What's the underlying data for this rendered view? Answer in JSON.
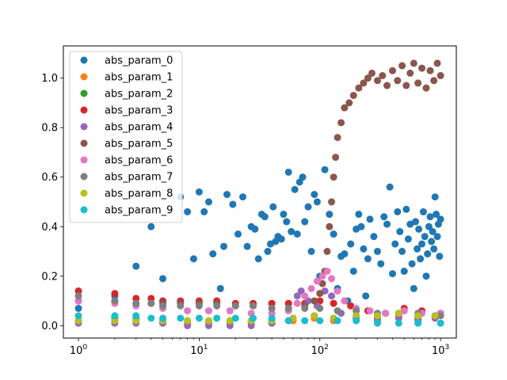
{
  "chart_data": {
    "type": "scatter",
    "title": "",
    "xlabel": "",
    "ylabel": "",
    "xscale": "log",
    "xlim": [
      0.75,
      1350
    ],
    "ylim": [
      -0.05,
      1.13
    ],
    "x_ticks": [
      {
        "value": 1,
        "base": "10",
        "exp": "0"
      },
      {
        "value": 10,
        "base": "10",
        "exp": "1"
      },
      {
        "value": 100,
        "base": "10",
        "exp": "2"
      },
      {
        "value": 1000,
        "base": "10",
        "exp": "3"
      }
    ],
    "y_ticks": [
      "0.0",
      "0.2",
      "0.4",
      "0.6",
      "0.8",
      "1.0"
    ],
    "grid": false,
    "legend_position": "top-left",
    "series": [
      {
        "name": "abs_param_0",
        "color": "#1f77b4",
        "points": [
          [
            1,
            0.07
          ],
          [
            2,
            0.12
          ],
          [
            3,
            0.24
          ],
          [
            4,
            0.4
          ],
          [
            5,
            0.19
          ],
          [
            7,
            0.52
          ],
          [
            8,
            0.46
          ],
          [
            9,
            0.27
          ],
          [
            10,
            0.54
          ],
          [
            11,
            0.46
          ],
          [
            12,
            0.5
          ],
          [
            13,
            0.29
          ],
          [
            15,
            0.15
          ],
          [
            16,
            0.32
          ],
          [
            17,
            0.53
          ],
          [
            19,
            0.49
          ],
          [
            21,
            0.37
          ],
          [
            23,
            0.52
          ],
          [
            25,
            0.32
          ],
          [
            27,
            0.4
          ],
          [
            29,
            0.39
          ],
          [
            31,
            0.27
          ],
          [
            33,
            0.45
          ],
          [
            35,
            0.44
          ],
          [
            37,
            0.3
          ],
          [
            39,
            0.33
          ],
          [
            41,
            0.48
          ],
          [
            43,
            0.34
          ],
          [
            45,
            0.36
          ],
          [
            48,
            0.35
          ],
          [
            50,
            0.45
          ],
          [
            53,
            0.42
          ],
          [
            55,
            0.62
          ],
          [
            58,
            0.38
          ],
          [
            62,
            0.55
          ],
          [
            65,
            0.37
          ],
          [
            68,
            0.58
          ],
          [
            72,
            0.6
          ],
          [
            75,
            0.42
          ],
          [
            80,
            0.48
          ],
          [
            85,
            0.3
          ],
          [
            90,
            0.53
          ],
          [
            95,
            0.5
          ],
          [
            100,
            0.2
          ],
          [
            110,
            0.63
          ],
          [
            120,
            0.45
          ],
          [
            130,
            0.37
          ],
          [
            140,
            0.15
          ],
          [
            150,
            0.28
          ],
          [
            160,
            0.29
          ],
          [
            170,
            0.1
          ],
          [
            180,
            0.33
          ],
          [
            190,
            0.22
          ],
          [
            200,
            0.39
          ],
          [
            210,
            0.45
          ],
          [
            220,
            0.4
          ],
          [
            230,
            0.31
          ],
          [
            240,
            0.12
          ],
          [
            250,
            0.27
          ],
          [
            260,
            0.43
          ],
          [
            280,
            0.36
          ],
          [
            300,
            0.3
          ],
          [
            320,
            0.25
          ],
          [
            340,
            0.44
          ],
          [
            360,
            0.41
          ],
          [
            380,
            0.56
          ],
          [
            400,
            0.21
          ],
          [
            420,
            0.33
          ],
          [
            440,
            0.46
          ],
          [
            460,
            0.38
          ],
          [
            480,
            0.3
          ],
          [
            500,
            0.22
          ],
          [
            520,
            0.47
          ],
          [
            540,
            0.35
          ],
          [
            560,
            0.41
          ],
          [
            580,
            0.25
          ],
          [
            600,
            0.15
          ],
          [
            620,
            0.42
          ],
          [
            640,
            0.31
          ],
          [
            660,
            0.39
          ],
          [
            680,
            0.27
          ],
          [
            700,
            0.33
          ],
          [
            720,
            0.46
          ],
          [
            740,
            0.36
          ],
          [
            760,
            0.2
          ],
          [
            780,
            0.29
          ],
          [
            800,
            0.4
          ],
          [
            820,
            0.44
          ],
          [
            840,
            0.34
          ],
          [
            860,
            0.38
          ],
          [
            880,
            0.31
          ],
          [
            900,
            0.52
          ],
          [
            920,
            0.45
          ],
          [
            940,
            0.36
          ],
          [
            960,
            0.41
          ],
          [
            980,
            0.28
          ],
          [
            1000,
            0.43
          ]
        ]
      },
      {
        "name": "abs_param_1",
        "color": "#ff7f0e",
        "points": [
          [
            1,
            0.02
          ],
          [
            2,
            0.02
          ],
          [
            3,
            0.02
          ],
          [
            5,
            0.01
          ],
          [
            8,
            0.01
          ],
          [
            12,
            0.01
          ],
          [
            18,
            0.01
          ],
          [
            27,
            0.01
          ],
          [
            40,
            0.01
          ],
          [
            60,
            0.02
          ],
          [
            90,
            0.03
          ],
          [
            130,
            0.02
          ],
          [
            200,
            0.03
          ],
          [
            300,
            0.03
          ],
          [
            450,
            0.04
          ],
          [
            650,
            0.03
          ],
          [
            900,
            0.04
          ]
        ]
      },
      {
        "name": "abs_param_2",
        "color": "#2ca02c",
        "points": [
          [
            1,
            0.02
          ],
          [
            2,
            0.03
          ],
          [
            3,
            0.03
          ],
          [
            5,
            0.02
          ],
          [
            8,
            0.02
          ],
          [
            12,
            0.02
          ],
          [
            18,
            0.02
          ],
          [
            27,
            0.02
          ],
          [
            40,
            0.02
          ],
          [
            60,
            0.03
          ],
          [
            90,
            0.04
          ],
          [
            130,
            0.03
          ],
          [
            200,
            0.04
          ],
          [
            300,
            0.03
          ],
          [
            450,
            0.05
          ],
          [
            650,
            0.03
          ],
          [
            900,
            0.04
          ]
        ]
      },
      {
        "name": "abs_param_3",
        "color": "#d62728",
        "points": [
          [
            1,
            0.14
          ],
          [
            2,
            0.13
          ],
          [
            3,
            0.11
          ],
          [
            4,
            0.11
          ],
          [
            5,
            0.1
          ],
          [
            7,
            0.1
          ],
          [
            10,
            0.1
          ],
          [
            14,
            0.1
          ],
          [
            20,
            0.09
          ],
          [
            28,
            0.09
          ],
          [
            40,
            0.09
          ],
          [
            55,
            0.09
          ],
          [
            75,
            0.09
          ],
          [
            100,
            0.1
          ],
          [
            130,
            0.09
          ],
          [
            180,
            0.08
          ],
          [
            250,
            0.06
          ],
          [
            350,
            0.05
          ],
          [
            500,
            0.07
          ],
          [
            700,
            0.06
          ],
          [
            1000,
            0.05
          ]
        ]
      },
      {
        "name": "abs_param_4",
        "color": "#9467bd",
        "points": [
          [
            1,
            0.01
          ],
          [
            2,
            0.01
          ],
          [
            3,
            0.01
          ],
          [
            5,
            0.01
          ],
          [
            8,
            0.0
          ],
          [
            12,
            0.0
          ],
          [
            18,
            0.0
          ],
          [
            27,
            0.0
          ],
          [
            40,
            0.01
          ],
          [
            55,
            0.02
          ],
          [
            65,
            0.12
          ],
          [
            70,
            0.14
          ],
          [
            80,
            0.1
          ],
          [
            95,
            0.08
          ],
          [
            110,
            0.14
          ],
          [
            125,
            0.12
          ],
          [
            150,
            0.05
          ],
          [
            200,
            0.03
          ],
          [
            300,
            0.02
          ],
          [
            450,
            0.03
          ],
          [
            650,
            0.02
          ],
          [
            900,
            0.03
          ]
        ]
      },
      {
        "name": "abs_param_5",
        "color": "#8c564b",
        "points": [
          [
            1,
            0.1
          ],
          [
            2,
            0.1
          ],
          [
            3,
            0.09
          ],
          [
            4,
            0.09
          ],
          [
            5,
            0.09
          ],
          [
            7,
            0.09
          ],
          [
            10,
            0.09
          ],
          [
            14,
            0.09
          ],
          [
            20,
            0.08
          ],
          [
            28,
            0.08
          ],
          [
            40,
            0.07
          ],
          [
            55,
            0.07
          ],
          [
            75,
            0.08
          ],
          [
            90,
            0.1
          ],
          [
            100,
            0.13
          ],
          [
            105,
            0.17
          ],
          [
            110,
            0.22
          ],
          [
            115,
            0.3
          ],
          [
            120,
            0.4
          ],
          [
            125,
            0.5
          ],
          [
            130,
            0.6
          ],
          [
            135,
            0.68
          ],
          [
            140,
            0.76
          ],
          [
            150,
            0.82
          ],
          [
            160,
            0.88
          ],
          [
            175,
            0.9
          ],
          [
            190,
            0.93
          ],
          [
            210,
            0.96
          ],
          [
            230,
            0.98
          ],
          [
            250,
            1.0
          ],
          [
            270,
            1.02
          ],
          [
            300,
            0.99
          ],
          [
            330,
            1.01
          ],
          [
            360,
            0.97
          ],
          [
            400,
            1.03
          ],
          [
            440,
            0.99
          ],
          [
            480,
            1.05
          ],
          [
            520,
            0.97
          ],
          [
            560,
            1.02
          ],
          [
            600,
            1.06
          ],
          [
            650,
            0.98
          ],
          [
            700,
            1.04
          ],
          [
            760,
            0.96
          ],
          [
            820,
            1.03
          ],
          [
            880,
            0.99
          ],
          [
            940,
            1.06
          ],
          [
            1000,
            1.01
          ]
        ]
      },
      {
        "name": "abs_param_6",
        "color": "#e377c2",
        "points": [
          [
            1,
            0.1
          ],
          [
            2,
            0.09
          ],
          [
            3,
            0.08
          ],
          [
            5,
            0.07
          ],
          [
            8,
            0.06
          ],
          [
            12,
            0.06
          ],
          [
            18,
            0.06
          ],
          [
            27,
            0.05
          ],
          [
            40,
            0.05
          ],
          [
            55,
            0.06
          ],
          [
            65,
            0.09
          ],
          [
            75,
            0.12
          ],
          [
            85,
            0.15
          ],
          [
            95,
            0.18
          ],
          [
            105,
            0.2
          ],
          [
            115,
            0.22
          ],
          [
            125,
            0.19
          ],
          [
            140,
            0.14
          ],
          [
            160,
            0.1
          ],
          [
            200,
            0.07
          ],
          [
            260,
            0.06
          ],
          [
            350,
            0.05
          ],
          [
            500,
            0.06
          ],
          [
            700,
            0.05
          ],
          [
            1000,
            0.05
          ]
        ]
      },
      {
        "name": "abs_param_7",
        "color": "#7f7f7f",
        "points": [
          [
            1,
            0.12
          ],
          [
            2,
            0.1
          ],
          [
            3,
            0.09
          ],
          [
            4,
            0.09
          ],
          [
            5,
            0.08
          ],
          [
            7,
            0.08
          ],
          [
            10,
            0.08
          ],
          [
            14,
            0.08
          ],
          [
            20,
            0.08
          ],
          [
            28,
            0.08
          ],
          [
            40,
            0.07
          ],
          [
            55,
            0.07
          ],
          [
            75,
            0.07
          ],
          [
            100,
            0.07
          ],
          [
            140,
            0.06
          ],
          [
            200,
            0.06
          ],
          [
            300,
            0.05
          ],
          [
            450,
            0.05
          ],
          [
            650,
            0.05
          ],
          [
            1000,
            0.04
          ]
        ]
      },
      {
        "name": "abs_param_8",
        "color": "#bcbd22",
        "points": [
          [
            1,
            0.02
          ],
          [
            2,
            0.02
          ],
          [
            3,
            0.02
          ],
          [
            5,
            0.02
          ],
          [
            8,
            0.02
          ],
          [
            12,
            0.02
          ],
          [
            18,
            0.02
          ],
          [
            27,
            0.02
          ],
          [
            40,
            0.02
          ],
          [
            60,
            0.03
          ],
          [
            90,
            0.04
          ],
          [
            130,
            0.03
          ],
          [
            200,
            0.04
          ],
          [
            300,
            0.04
          ],
          [
            450,
            0.05
          ],
          [
            650,
            0.04
          ],
          [
            900,
            0.04
          ]
        ]
      },
      {
        "name": "abs_param_9",
        "color": "#17becf",
        "points": [
          [
            1,
            0.04
          ],
          [
            2,
            0.04
          ],
          [
            3,
            0.04
          ],
          [
            4,
            0.03
          ],
          [
            5,
            0.03
          ],
          [
            7,
            0.03
          ],
          [
            10,
            0.03
          ],
          [
            14,
            0.03
          ],
          [
            20,
            0.03
          ],
          [
            28,
            0.03
          ],
          [
            40,
            0.03
          ],
          [
            55,
            0.02
          ],
          [
            75,
            0.02
          ],
          [
            100,
            0.02
          ],
          [
            140,
            0.02
          ],
          [
            200,
            0.02
          ],
          [
            300,
            0.01
          ],
          [
            450,
            0.01
          ],
          [
            650,
            0.01
          ],
          [
            1000,
            0.01
          ]
        ]
      }
    ]
  }
}
